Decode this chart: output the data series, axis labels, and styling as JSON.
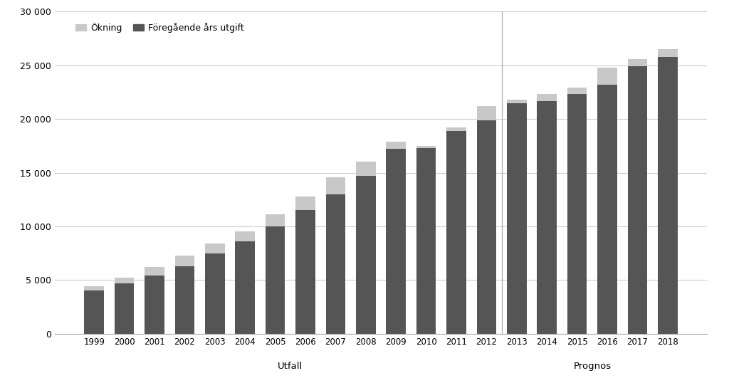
{
  "years": [
    1999,
    2000,
    2001,
    2002,
    2003,
    2004,
    2005,
    2006,
    2007,
    2008,
    2009,
    2010,
    2011,
    2012,
    2013,
    2014,
    2015,
    2016,
    2017,
    2018
  ],
  "base_values": [
    4000,
    4700,
    5400,
    6300,
    7500,
    8600,
    10000,
    11500,
    13000,
    14700,
    17200,
    17300,
    18900,
    19900,
    21500,
    21700,
    22300,
    23200,
    24900,
    25800
  ],
  "increment_values": [
    400,
    500,
    800,
    1000,
    900,
    900,
    1100,
    1300,
    1600,
    1300,
    700,
    200,
    300,
    1300,
    300,
    600,
    600,
    1600,
    700,
    700
  ],
  "utfall_years": [
    1999,
    2000,
    2001,
    2002,
    2003,
    2004,
    2005,
    2006,
    2007,
    2008,
    2009,
    2010,
    2011,
    2012
  ],
  "prognos_years": [
    2013,
    2014,
    2015,
    2016,
    2017,
    2018
  ],
  "dark_color": "#555555",
  "light_color": "#c8c8c8",
  "background_color": "#ffffff",
  "legend_okning": "Ökning",
  "legend_foregaende": "Föregående års utgift",
  "label_utfall": "Utfall",
  "label_prognos": "Prognos",
  "ylim": [
    0,
    30000
  ],
  "yticks": [
    0,
    5000,
    10000,
    15000,
    20000,
    25000,
    30000
  ],
  "ytick_labels": [
    "0",
    "5 000",
    "10 000",
    "15 000",
    "20 000",
    "25 000",
    "30 000"
  ]
}
